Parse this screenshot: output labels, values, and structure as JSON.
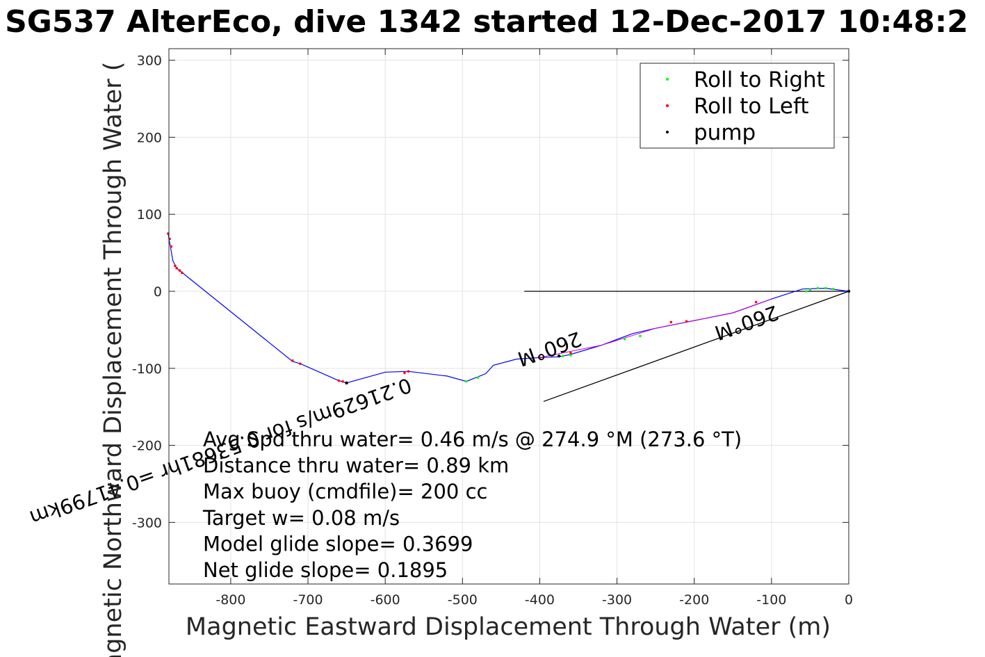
{
  "chart_data": {
    "type": "scatter",
    "title": "SG537 AlterEco, dive 1342 started 12-Dec-2017 10:48:2",
    "xlabel": "Magnetic Eastward Displacement Through Water (m)",
    "ylabel": "Magnetic Northward Displacement Through Water (",
    "xlim": [
      -880,
      0
    ],
    "ylim": [
      -380,
      315
    ],
    "x_ticks": [
      -800,
      -700,
      -600,
      -500,
      -400,
      -300,
      -200,
      -100,
      0
    ],
    "x_tick_labels": [
      "-800",
      "-700",
      "-600",
      "-500",
      "-400",
      "-300",
      "-200",
      "-100",
      "0"
    ],
    "y_ticks": [
      300,
      200,
      100,
      0,
      -100,
      -200,
      -300
    ],
    "y_tick_labels": [
      "300",
      "200",
      "100",
      "0",
      "-100",
      "-200",
      "-300"
    ],
    "grid": true,
    "legend_position": "top-right",
    "legend": [
      {
        "label": "Roll to Right",
        "color": "#00ff00"
      },
      {
        "label": "Roll to Left",
        "color": "#ff0000"
      },
      {
        "label": "pump",
        "color": "#000000"
      }
    ],
    "track": {
      "color": "#0000ff",
      "x": [
        0,
        -30,
        -60,
        -100,
        -150,
        -200,
        -250,
        -280,
        -320,
        -360,
        -375,
        -400,
        -430,
        -460,
        -470,
        -495,
        -520,
        -570,
        -600,
        -650,
        -660,
        -710,
        -720,
        -860,
        -870,
        -875,
        -878,
        -880,
        -881
      ],
      "y": [
        0,
        4,
        3,
        -10,
        -28,
        -38,
        -48,
        -55,
        -70,
        -82,
        -85,
        -86,
        -88,
        -96,
        -107,
        -117,
        -110,
        -104,
        -105,
        -119,
        -116,
        -94,
        -91,
        22,
        30,
        40,
        58,
        68,
        75
      ]
    },
    "series": [
      {
        "name": "Roll to Right",
        "color": "#00ff00",
        "x": [
          -20,
          -30,
          -40,
          -50,
          -55,
          -270,
          -290,
          -360,
          -370,
          -495,
          -480
        ],
        "y": [
          3,
          4,
          4,
          2,
          0,
          -58,
          -62,
          -83,
          -84,
          -117,
          -112
        ]
      },
      {
        "name": "Roll to Left",
        "color": "#ff0000",
        "x": [
          -120,
          -210,
          -230,
          -360,
          -400,
          -570,
          -575,
          -655,
          -660,
          -710,
          -720,
          -863,
          -866,
          -870,
          -872,
          -877,
          -879,
          -881
        ],
        "y": [
          -14,
          -39,
          -40,
          -80,
          -86,
          -104,
          -106,
          -117,
          -116,
          -94,
          -90,
          24,
          27,
          30,
          33,
          58,
          68,
          75
        ]
      },
      {
        "name": "pump",
        "color": "#000000",
        "x": [
          0,
          -650,
          -375
        ],
        "y": [
          0,
          -119,
          -84
        ]
      }
    ],
    "lines": [
      {
        "color": "#000000",
        "x": [
          -420,
          -5
        ],
        "y": [
          0,
          0
        ]
      },
      {
        "color": "#000000",
        "x": [
          0,
          -395
        ],
        "y": [
          0,
          -143
        ]
      }
    ],
    "annotations": [
      {
        "text": "0.21629m/s for 0.53681hr =0.41799km",
        "x": -570,
        "y": -112,
        "rotation": -19.5
      },
      {
        "text": "260°M",
        "x": -350,
        "y": -52,
        "rotation": -19.5
      },
      {
        "text": "260°M",
        "x": -95,
        "y": -18,
        "rotation": -19.5
      }
    ],
    "stats": [
      "Avg Spd thru water=  0.46 m/s @ 274.9 °M (273.6 °T)",
      "Distance thru water=  0.89 km",
      "Max buoy (cmdfile)= 200 cc",
      "Target w= 0.08 m/s",
      "Model glide slope= 0.3699",
      "Net glide slope= 0.1895"
    ]
  }
}
